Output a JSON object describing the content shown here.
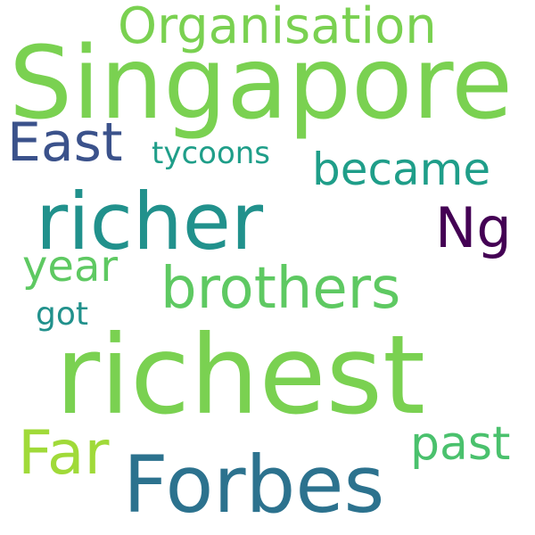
{
  "background_color": "#ffffff",
  "words": [
    {
      "id": "singapore",
      "text": "Singapore",
      "color": "#7ad151"
    },
    {
      "id": "organisation",
      "text": "Organisation",
      "color": "#7ad151"
    },
    {
      "id": "east",
      "text": "East",
      "color": "#3b528b"
    },
    {
      "id": "tycoons",
      "text": "tycoons",
      "color": "#1f9e89"
    },
    {
      "id": "became",
      "text": "became",
      "color": "#1f9e89"
    },
    {
      "id": "richer",
      "text": "richer",
      "color": "#21918c"
    },
    {
      "id": "ng",
      "text": "Ng",
      "color": "#440154"
    },
    {
      "id": "year",
      "text": "year",
      "color": "#5ec962"
    },
    {
      "id": "brothers",
      "text": "brothers",
      "color": "#5ec962"
    },
    {
      "id": "got",
      "text": "got",
      "color": "#21918c"
    },
    {
      "id": "richest",
      "text": "richest",
      "color": "#7ad151"
    },
    {
      "id": "far",
      "text": "Far",
      "color": "#a0da39"
    },
    {
      "id": "past",
      "text": "past",
      "color": "#4ac16d"
    },
    {
      "id": "forbes",
      "text": "Forbes",
      "color": "#2c728e"
    }
  ]
}
